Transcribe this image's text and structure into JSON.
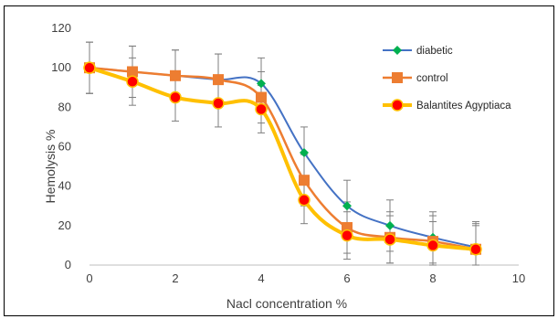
{
  "chart_data": {
    "type": "line",
    "title": "",
    "xlabel": "Nacl concentration %",
    "ylabel": "Hemolysis %",
    "xlim": [
      0,
      10
    ],
    "ylim": [
      0,
      120
    ],
    "x_ticks": [
      "0",
      "2",
      "4",
      "6",
      "8",
      "10"
    ],
    "y_ticks": [
      "0",
      "20",
      "40",
      "60",
      "80",
      "100",
      "120"
    ],
    "grid": false,
    "legend_position": "top-right",
    "series": [
      {
        "name": "diabetic",
        "color": "#4472C4",
        "marker": "diamond",
        "marker_color": "#00B050",
        "x": [
          0,
          1,
          2,
          3,
          4,
          5,
          6,
          7,
          8,
          9
        ],
        "y": [
          100,
          98,
          96,
          94,
          92,
          57,
          30,
          20,
          14,
          9
        ],
        "error": [
          13,
          13,
          13,
          13,
          13,
          13,
          13,
          13,
          13,
          13
        ]
      },
      {
        "name": "control",
        "color": "#ED7D31",
        "marker": "square",
        "marker_color": "#ED7D31",
        "x": [
          0,
          1,
          2,
          3,
          4,
          5,
          6,
          7,
          8,
          9
        ],
        "y": [
          100,
          98,
          96,
          94,
          85,
          43,
          19,
          14,
          12,
          8
        ],
        "error": [
          13,
          13,
          13,
          13,
          13,
          13,
          13,
          13,
          13,
          13
        ]
      },
      {
        "name": "Balantites Agyptiaca",
        "color": "#FFC000",
        "marker": "circle",
        "marker_color": "#FF0000",
        "x": [
          0,
          1,
          2,
          3,
          4,
          5,
          6,
          7,
          8,
          9
        ],
        "y": [
          100,
          93,
          85,
          82,
          79,
          33,
          15,
          13,
          10,
          8
        ],
        "error": [
          13,
          12,
          12,
          12,
          12,
          12,
          12,
          12,
          12,
          12
        ]
      }
    ]
  }
}
